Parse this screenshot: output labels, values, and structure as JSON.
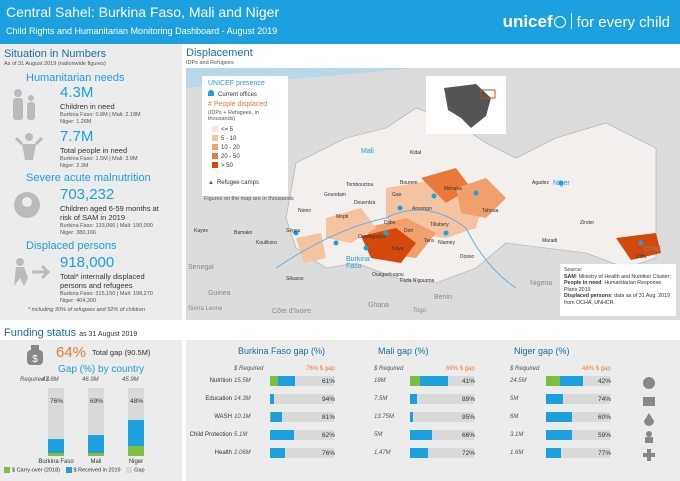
{
  "header": {
    "title": "Central Sahel: Burkina Faso, Mali and Niger",
    "subtitle": "Child Rights and Humanitarian Monitoring Dashboard - August 2019",
    "logo": "unicef",
    "tagline": "for every child"
  },
  "situation": {
    "title": "Situation in Numbers",
    "asof": "As of 31 August 2019 (nationwide figures)",
    "needs_title": "Humanitarian needs",
    "children_need": {
      "value": "4.3M",
      "label": "Children in need",
      "detail1": "Burkina Faso: 0.8M | Mali: 2.18M",
      "detail2": "Niger: 1.26M"
    },
    "people_need": {
      "value": "7.7M",
      "label": "Total people in need",
      "detail1": "Burkina Faso: 1.5M | Mali: 3.9M",
      "detail2": "Niger: 2.3M"
    },
    "sam_title": "Severe acute malnutrition",
    "sam": {
      "value": "703,232",
      "label1": "Children aged 6-59 months at",
      "label2": "risk of SAM in 2019",
      "detail1": "Burkina Faso: 133,066 | Mali: 190,000",
      "detail2": "Niger: 380,166"
    },
    "displaced_title": "Displaced persons",
    "displaced": {
      "value": "918,000",
      "label1": "Total* internally displaced",
      "label2": "persons and refugees",
      "detail1": "Burkina Faso: 315,150 | Mali: 198,270",
      "detail2": "Niger: 404,300",
      "note": "* including 30% of refugees and 52% of children"
    }
  },
  "displacement": {
    "title": "Displacement",
    "subtitle": "IDPs and Refugees",
    "legend": {
      "presence_title": "UNICEF presence",
      "offices": "Current offices",
      "displaced_title": "# People displaced",
      "displaced_note1": "(IDPs + Refugees, in",
      "displaced_note2": "thousands)",
      "bins": [
        "<= 5",
        "5 - 10",
        "10 - 20",
        "20 - 50",
        "> 50"
      ],
      "bin_colors": [
        "#f3e6dd",
        "#f6c3a1",
        "#f0a06c",
        "#e9783a",
        "#d4480e"
      ],
      "camps": "Refugee camps",
      "figures_note": "Figures on the map are in thousands"
    },
    "countries": [
      "Mali",
      "Niger",
      "Burkina Faso",
      "Senegal",
      "Guinea",
      "Côte d'Ivoire",
      "Ghana",
      "Benin",
      "Nigeria",
      "Chad",
      "Togo",
      "Sierra Leone"
    ],
    "cities": [
      "Kidal",
      "Tombouctou",
      "Gao",
      "Ménaka",
      "Mopti",
      "Agadez",
      "Tahoua",
      "Zinder",
      "Diffa",
      "Maradi",
      "Dosso",
      "Niamey",
      "Tillabery",
      "Ségou",
      "Bamako",
      "Kayes",
      "Koulikoro",
      "Sikasso",
      "Ouagadougou",
      "Fada N'gourma",
      "Dori",
      "Djibo",
      "Kaya",
      "Ouahigouya",
      "Tera",
      "Ansongo",
      "Bourem",
      "Douentza",
      "Goundam",
      "Niono"
    ],
    "source_label": "Source:",
    "source1_key": "SAM",
    "source1": ": Ministry of Health and Nutrition Cluster;",
    "source2_key": "People in need",
    "source2": ": Humanitarian Response Plans 2019",
    "source3_key": "Displaced persons",
    "source3": ": data as of 31 Aug. 2019 from OCHA, UNHCR."
  },
  "funding": {
    "title": "Funding status",
    "asof": "as 31 August 2019",
    "total_gap_pct": "64%",
    "total_gap_label": "Total gap (90.5M)",
    "by_country_title": "Gap (%) by country",
    "required_label": "Required $",
    "countries": [
      {
        "name": "Burkina Faso",
        "required": "47.6M",
        "gap_pct": "76%",
        "carryover": 0.04,
        "received": 0.2
      },
      {
        "name": "Mali",
        "required": "46.9M",
        "gap_pct": "69%",
        "carryover": 0.05,
        "received": 0.26
      },
      {
        "name": "Niger",
        "required": "45.9M",
        "gap_pct": "48%",
        "carryover": 0.14,
        "received": 0.38
      }
    ],
    "legend": [
      "$ Carry-over (2018)",
      "$ Received in 2019",
      "Gap"
    ],
    "colors": {
      "carryover": "#7fbf3f",
      "received": "#1ca0e0",
      "gap": "#d9d9d9"
    }
  },
  "sector_gaps": [
    {
      "title": "Burkina Faso gap (%)",
      "required_label": "$ Required",
      "gap_label": "76% $ gap",
      "rows": [
        {
          "sector": "Nutrition",
          "required": "15.5M",
          "gap": "61%",
          "carryover": 0.12,
          "received": 0.27
        },
        {
          "sector": "Education",
          "required": "14.3M",
          "gap": "94%",
          "carryover": 0.0,
          "received": 0.06
        },
        {
          "sector": "WASH",
          "required": "10.1M",
          "gap": "81%",
          "carryover": 0.02,
          "received": 0.17
        },
        {
          "sector": "Child Protection",
          "required": "5.1M",
          "gap": "62%",
          "carryover": 0.0,
          "received": 0.38
        },
        {
          "sector": "Health",
          "required": "2.06M",
          "gap": "76%",
          "carryover": 0.0,
          "received": 0.24
        }
      ]
    },
    {
      "title": "Mali gap (%)",
      "required_label": "$ Required",
      "gap_label": "69% $ gap",
      "rows": [
        {
          "sector": "Nutrition",
          "required": "18M",
          "gap": "41%",
          "carryover": 0.16,
          "received": 0.43
        },
        {
          "sector": "Education",
          "required": "7.5M",
          "gap": "89%",
          "carryover": 0.0,
          "received": 0.11
        },
        {
          "sector": "WASH",
          "required": "13.75M",
          "gap": "95%",
          "carryover": 0.0,
          "received": 0.05
        },
        {
          "sector": "Child Protection",
          "required": "5M",
          "gap": "66%",
          "carryover": 0.0,
          "received": 0.34
        },
        {
          "sector": "Health",
          "required": "1.47M",
          "gap": "72%",
          "carryover": 0.0,
          "received": 0.28
        }
      ]
    },
    {
      "title": "Niger gap (%)",
      "required_label": "$ Required",
      "gap_label": "48% $ gap",
      "rows": [
        {
          "sector": "Nutrition",
          "required": "24.5M",
          "gap": "42%",
          "carryover": 0.22,
          "received": 0.36
        },
        {
          "sector": "Education",
          "required": "5M",
          "gap": "74%",
          "carryover": 0.0,
          "received": 0.26
        },
        {
          "sector": "WASH",
          "required": "6M",
          "gap": "60%",
          "carryover": 0.0,
          "received": 0.4
        },
        {
          "sector": "Child Protection",
          "required": "3.1M",
          "gap": "59%",
          "carryover": 0.0,
          "received": 0.41
        },
        {
          "sector": "Health",
          "required": "1.6M",
          "gap": "77%",
          "carryover": 0.0,
          "received": 0.23
        }
      ]
    }
  ],
  "sector_icons": [
    "nutrition-icon",
    "education-icon",
    "wash-icon",
    "child-protection-icon",
    "health-icon"
  ]
}
